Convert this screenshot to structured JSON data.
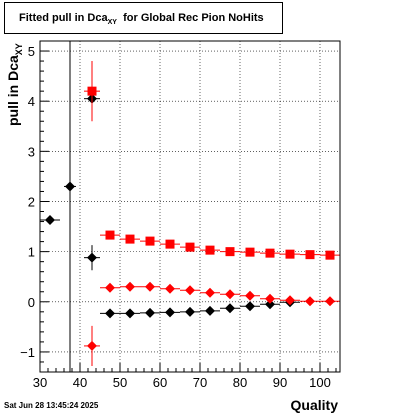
{
  "title": {
    "main": "Fitted pull in Dca",
    "sub": "XY",
    "suffix": "for Global Rec Pion NoHits"
  },
  "footer": "Sat Jun 28 13:45:24 2025",
  "chart_data": {
    "type": "scatter",
    "xlabel": "Quality",
    "ylabel": {
      "main": "pull in Dca",
      "sub": "XY"
    },
    "xlim": [
      30,
      105
    ],
    "ylim": [
      -1.4,
      5.2
    ],
    "xticks": [
      30,
      40,
      50,
      60,
      70,
      80,
      90,
      100
    ],
    "yticks": [
      -1,
      0,
      1,
      2,
      3,
      4,
      5
    ],
    "grid": true,
    "series": [
      {
        "color": "#000000",
        "marker": "diamond",
        "points": [
          {
            "x": 32.5,
            "y": 1.63,
            "xerr": 2.5,
            "yerr": 0
          },
          {
            "x": 37.5,
            "y": 2.3,
            "xerr": 1.5,
            "yerr": 5
          },
          {
            "x": 43,
            "y": 0.88,
            "xerr": 2,
            "yerr": 0.25
          },
          {
            "x": 43,
            "y": 4.05,
            "xerr": 2,
            "yerr": 0
          },
          {
            "x": 47.5,
            "y": -0.23,
            "xerr": 2.5,
            "yerr": 0
          },
          {
            "x": 52.5,
            "y": -0.23,
            "xerr": 2.5,
            "yerr": 0
          },
          {
            "x": 57.5,
            "y": -0.22,
            "xerr": 2.5,
            "yerr": 0
          },
          {
            "x": 62.5,
            "y": -0.21,
            "xerr": 2.5,
            "yerr": 0
          },
          {
            "x": 67.5,
            "y": -0.2,
            "xerr": 2.5,
            "yerr": 0
          },
          {
            "x": 72.5,
            "y": -0.18,
            "xerr": 2.5,
            "yerr": 0
          },
          {
            "x": 77.5,
            "y": -0.13,
            "xerr": 2.5,
            "yerr": 0
          },
          {
            "x": 82.5,
            "y": -0.09,
            "xerr": 2.5,
            "yerr": 0
          },
          {
            "x": 87.5,
            "y": -0.05,
            "xerr": 2.5,
            "yerr": 0
          },
          {
            "x": 92.5,
            "y": -0.01,
            "xerr": 2.5,
            "yerr": 0
          }
        ]
      },
      {
        "color": "#ff0000",
        "marker": "square",
        "points": [
          {
            "x": 43,
            "y": 4.2,
            "xerr": 2,
            "yerr": 0.6
          },
          {
            "x": 47.5,
            "y": 1.33,
            "xerr": 2.5,
            "yerr": 0.05
          },
          {
            "x": 52.5,
            "y": 1.25,
            "xerr": 2.5,
            "yerr": 0
          },
          {
            "x": 57.5,
            "y": 1.21,
            "xerr": 2.5,
            "yerr": 0
          },
          {
            "x": 62.5,
            "y": 1.15,
            "xerr": 2.5,
            "yerr": 0
          },
          {
            "x": 67.5,
            "y": 1.09,
            "xerr": 2.5,
            "yerr": 0
          },
          {
            "x": 72.5,
            "y": 1.03,
            "xerr": 2.5,
            "yerr": 0
          },
          {
            "x": 77.5,
            "y": 1.0,
            "xerr": 2.5,
            "yerr": 0
          },
          {
            "x": 82.5,
            "y": 0.99,
            "xerr": 2.5,
            "yerr": 0
          },
          {
            "x": 87.5,
            "y": 0.97,
            "xerr": 2.5,
            "yerr": 0
          },
          {
            "x": 92.5,
            "y": 0.95,
            "xerr": 2.5,
            "yerr": 0
          },
          {
            "x": 97.5,
            "y": 0.94,
            "xerr": 2.5,
            "yerr": 0
          },
          {
            "x": 102.5,
            "y": 0.93,
            "xerr": 2.5,
            "yerr": 0
          }
        ]
      },
      {
        "color": "#ff0000",
        "marker": "diamond",
        "points": [
          {
            "x": 43,
            "y": -0.88,
            "xerr": 2,
            "yerr": 0.4
          },
          {
            "x": 47.5,
            "y": 0.28,
            "xerr": 2.5,
            "yerr": 0
          },
          {
            "x": 52.5,
            "y": 0.3,
            "xerr": 2.5,
            "yerr": 0
          },
          {
            "x": 57.5,
            "y": 0.3,
            "xerr": 2.5,
            "yerr": 0
          },
          {
            "x": 62.5,
            "y": 0.26,
            "xerr": 2.5,
            "yerr": 0
          },
          {
            "x": 67.5,
            "y": 0.23,
            "xerr": 2.5,
            "yerr": 0
          },
          {
            "x": 72.5,
            "y": 0.18,
            "xerr": 2.5,
            "yerr": 0
          },
          {
            "x": 77.5,
            "y": 0.15,
            "xerr": 2.5,
            "yerr": 0
          },
          {
            "x": 82.5,
            "y": 0.12,
            "xerr": 2.5,
            "yerr": 0
          },
          {
            "x": 87.5,
            "y": 0.06,
            "xerr": 2.5,
            "yerr": 0
          },
          {
            "x": 92.5,
            "y": 0.03,
            "xerr": 2.5,
            "yerr": 0
          },
          {
            "x": 97.5,
            "y": 0.01,
            "xerr": 2.5,
            "yerr": 0
          },
          {
            "x": 102.5,
            "y": 0.01,
            "xerr": 2.5,
            "yerr": 0
          }
        ]
      }
    ]
  }
}
